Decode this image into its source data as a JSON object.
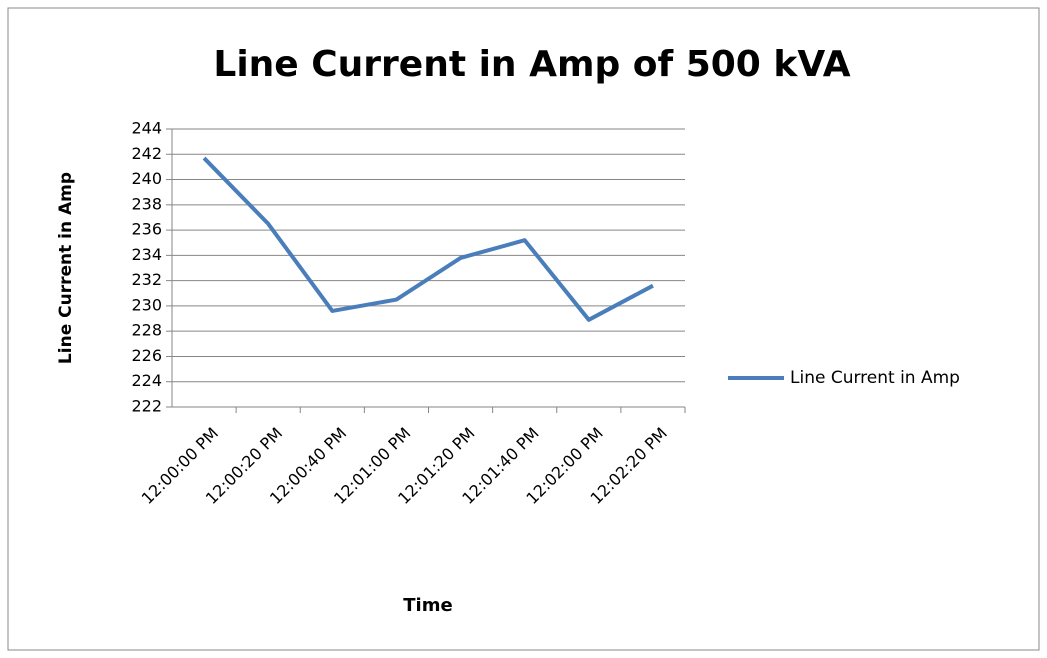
{
  "chart_data": {
    "type": "line",
    "title": "Line Current in Amp of 500 kVA",
    "x_label": "Time",
    "y_label": "Line Current in Amp",
    "categories": [
      "12:00:00 PM",
      "12:00:20 PM",
      "12:00:40 PM",
      "12:01:00 PM",
      "12:01:20 PM",
      "12:01:40 PM",
      "12:02:00 PM",
      "12:02:20 PM"
    ],
    "series": [
      {
        "name": "Line Current in Amp",
        "color": "#4a7ebb",
        "values": [
          241.7,
          236.5,
          229.6,
          230.5,
          233.8,
          235.2,
          228.9,
          231.6
        ]
      }
    ],
    "ylim": [
      222,
      244
    ],
    "yticks": [
      222,
      224,
      226,
      228,
      230,
      232,
      234,
      236,
      238,
      240,
      242,
      244
    ],
    "grid": true,
    "legend": "right"
  }
}
